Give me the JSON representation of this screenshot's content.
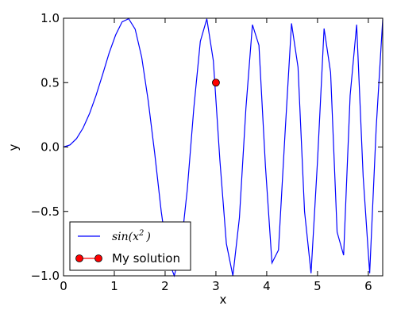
{
  "chart_data": {
    "type": "line",
    "xlabel": "x",
    "ylabel": "y",
    "xlim": [
      0,
      6.2832
    ],
    "ylim": [
      -1.0,
      1.0
    ],
    "xticks": [
      0,
      1,
      2,
      3,
      4,
      5,
      6
    ],
    "xtick_labels": [
      "0",
      "1",
      "2",
      "3",
      "4",
      "5",
      "6"
    ],
    "yticks": [
      -1.0,
      -0.5,
      0.0,
      0.5,
      1.0
    ],
    "ytick_labels": [
      "−1.0",
      "−0.5",
      "0.0",
      "0.5",
      "1.0"
    ],
    "grid": false,
    "legend_position": "lower-left",
    "series": [
      {
        "name": "sin(x²)",
        "legend_base": "sin(x",
        "legend_sup": "2",
        "legend_close": ")",
        "kind": "line",
        "color": "#0000ff",
        "x": [
          0,
          0.1282,
          0.2565,
          0.3847,
          0.5129,
          0.6411,
          0.7694,
          0.8976,
          1.0258,
          1.1541,
          1.2823,
          1.4105,
          1.5387,
          1.667,
          1.7952,
          1.9234,
          2.0517,
          2.1799,
          2.3081,
          2.4363,
          2.5646,
          2.6928,
          2.821,
          2.9493,
          3.0775,
          3.2057,
          3.3339,
          3.4622,
          3.5904,
          3.7186,
          3.8468,
          3.9751,
          4.1033,
          4.2315,
          4.3598,
          4.488,
          4.6162,
          4.7444,
          4.8727,
          5.0009,
          5.1291,
          5.2574,
          5.3856,
          5.5138,
          5.642,
          5.7703,
          5.8985,
          6.0267,
          6.155,
          6.2832
        ],
        "y": [
          0,
          0.0164,
          0.0658,
          0.1475,
          0.2607,
          0.4017,
          0.5626,
          0.7297,
          0.8699,
          0.9721,
          0.9963,
          0.9151,
          0.6981,
          0.3597,
          -0.05,
          -0.5,
          -0.8644,
          -0.9992,
          -0.8,
          -0.33,
          0.3,
          0.82,
          0.995,
          0.67,
          -0.1,
          -0.75,
          -1.0,
          -0.55,
          0.3,
          0.95,
          0.79,
          -0.15,
          -0.9,
          -0.8,
          0.1,
          0.96,
          0.62,
          -0.5,
          -0.98,
          -0.1,
          0.92,
          0.58,
          -0.66,
          -0.84,
          0.4,
          0.95,
          -0.23,
          -0.98,
          0.15,
          0.99
        ]
      },
      {
        "name": "My solution",
        "kind": "marker",
        "color": "#ff0000",
        "x": [
          3.0
        ],
        "y": [
          0.5
        ]
      }
    ]
  }
}
